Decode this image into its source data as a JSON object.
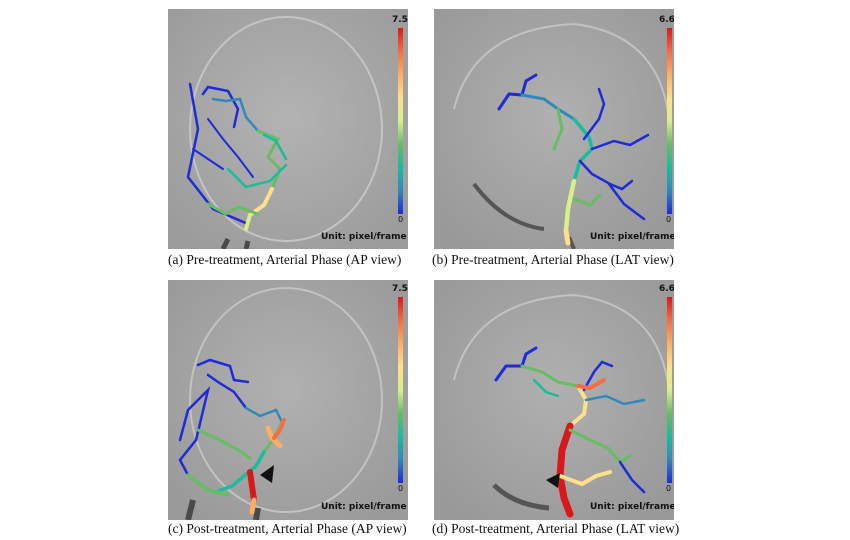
{
  "panels": {
    "a": {
      "caption": "(a) Pre-treatment, Arterial Phase (AP view)",
      "cb_max": "7.5",
      "cb_min": "0",
      "unit": "Unit: pixel/frame"
    },
    "b": {
      "caption": "(b) Pre-treatment, Arterial Phase (LAT view)",
      "cb_max": "6.6",
      "cb_min": "0",
      "unit": "Unit: pixel/frame"
    },
    "c": {
      "caption": "(c) Post-treatment, Arterial Phase (AP view)",
      "cb_max": "7.5",
      "cb_min": "0",
      "unit": "Unit: pixel/frame"
    },
    "d": {
      "caption": "(d) Post-treatment, Arterial Phase (LAT view)",
      "cb_max": "6.6",
      "cb_min": "0",
      "unit": "Unit: pixel/frame"
    }
  },
  "colormap": [
    "#1f2bd6",
    "#3288bd",
    "#1abc9c",
    "#66bd63",
    "#d9ef8b",
    "#fee08b",
    "#fdae61",
    "#f46d43",
    "#d7191c"
  ]
}
